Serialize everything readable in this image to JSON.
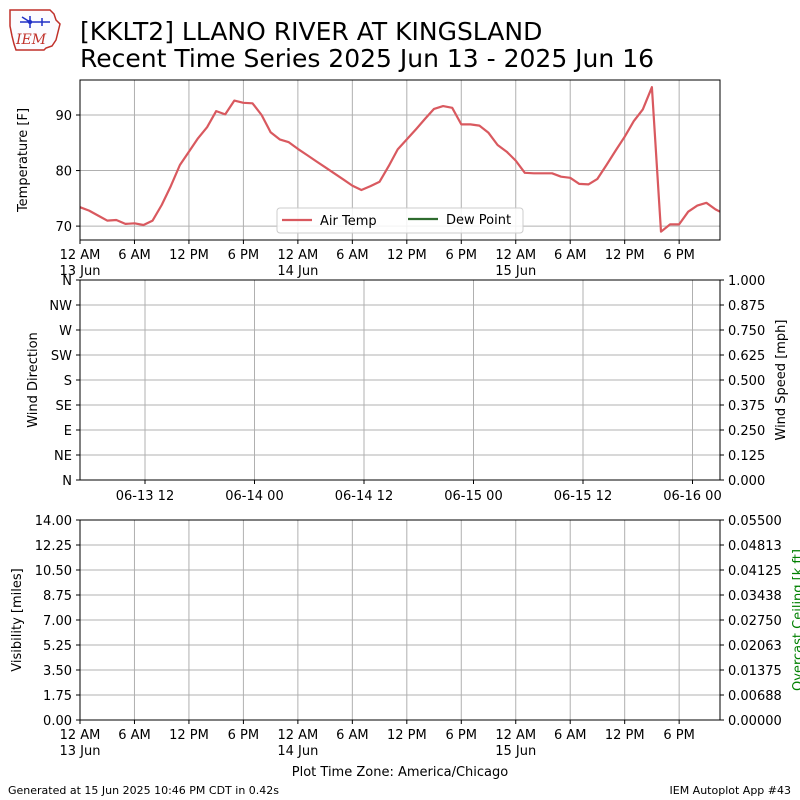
{
  "title": "[KKLT2] LLANO RIVER  AT KINGSLAND",
  "subtitle": "Recent Time Series 2025 Jun 13 - 2025 Jun 16",
  "logo_text": "IEM",
  "footer_left": "Generated at 15 Jun 2025 10:46 PM CDT in 0.42s",
  "footer_right": "IEM Autoplot App #43",
  "colors": {
    "air_temp": "#d9595f",
    "dew_point": "#2e6b2e",
    "grid": "#b0b0b0",
    "ceiling_label": "#008000"
  },
  "time_axis": {
    "ticks": [
      "12 AM",
      "6 AM",
      "12 PM",
      "6 PM",
      "12 AM",
      "6 AM",
      "12 PM",
      "6 PM",
      "12 AM",
      "6 AM",
      "12 PM",
      "6 PM"
    ],
    "day_labels": [
      {
        "label": "13 Jun",
        "tick": 0
      },
      {
        "label": "14 Jun",
        "tick": 4
      },
      {
        "label": "15 Jun",
        "tick": 8
      }
    ],
    "xlabel": "Plot Time Zone: America/Chicago"
  },
  "chart_data": [
    {
      "type": "line",
      "ylabel": "Temperature [F]",
      "ylim": [
        67.5,
        96.3
      ],
      "yticks": [
        70,
        80,
        90
      ],
      "x_unit": "hours since 13 Jun 12 AM",
      "xlim": [
        0,
        70.5
      ],
      "grid": true,
      "legend_placement": "lower center",
      "series": [
        {
          "name": "Air Temp",
          "x": [
            0,
            1,
            2,
            3,
            4,
            5,
            6,
            7,
            8,
            9,
            10,
            11,
            12,
            13,
            14,
            15,
            16,
            17,
            18,
            19,
            20,
            21,
            22,
            23,
            24,
            25,
            26,
            27,
            28,
            29,
            30,
            31,
            32,
            33,
            34,
            35,
            36,
            37,
            38,
            39,
            40,
            41,
            42,
            43,
            44,
            45,
            46,
            47,
            48,
            49,
            50,
            51,
            52,
            53,
            54,
            55,
            56,
            57,
            58,
            59,
            60,
            61,
            62,
            63,
            64,
            65,
            66,
            67,
            68,
            69,
            70,
            70.5
          ],
          "y": [
            73.4,
            72.8,
            71.9,
            71.0,
            71.1,
            70.4,
            70.5,
            70.2,
            71.0,
            73.8,
            77.2,
            81.0,
            83.4,
            85.8,
            87.8,
            90.7,
            90.1,
            92.6,
            92.2,
            92.1,
            90.0,
            86.9,
            85.6,
            85.1,
            83.9,
            82.8,
            81.7,
            80.6,
            79.5,
            78.4,
            77.3,
            76.5,
            77.2,
            78.0,
            80.8,
            83.8,
            85.6,
            87.4,
            89.3,
            91.1,
            91.6,
            91.3,
            88.3,
            88.3,
            88.1,
            86.8,
            84.6,
            83.4,
            81.8,
            79.6,
            79.5,
            79.5,
            79.5,
            78.9,
            78.7,
            77.6,
            77.5,
            78.5,
            81.0,
            83.6,
            86.1,
            88.9,
            91.0,
            95.0,
            69.0,
            70.3,
            70.3,
            72.6,
            73.7,
            74.2,
            73.0,
            72.6
          ]
        },
        {
          "name": "Dew Point",
          "x": [],
          "y": []
        }
      ]
    },
    {
      "type": "line",
      "ylabel": "Wind Direction",
      "y2label": "Wind Speed [mph]",
      "yticks": [
        "N",
        "NE",
        "E",
        "SE",
        "S",
        "SW",
        "W",
        "NW",
        "N"
      ],
      "y2ticks": [
        "0.000",
        "0.125",
        "0.250",
        "0.375",
        "0.500",
        "0.625",
        "0.750",
        "0.875",
        "1.000"
      ],
      "xticks": [
        "06-13 12",
        "06-14 00",
        "06-14 12",
        "06-15 00",
        "06-15 12",
        "06-16 00"
      ],
      "grid": true,
      "series": []
    },
    {
      "type": "line",
      "ylabel": "Visibility [miles]",
      "y2label": "Overcast Ceiling [k ft]",
      "yticks": [
        "0.00",
        "1.75",
        "3.50",
        "5.25",
        "7.00",
        "8.75",
        "10.50",
        "12.25",
        "14.00"
      ],
      "y2ticks": [
        "0.00000",
        "0.00688",
        "0.01375",
        "0.02063",
        "0.02750",
        "0.03438",
        "0.04125",
        "0.04813",
        "0.05500"
      ],
      "grid": true,
      "series": []
    }
  ]
}
